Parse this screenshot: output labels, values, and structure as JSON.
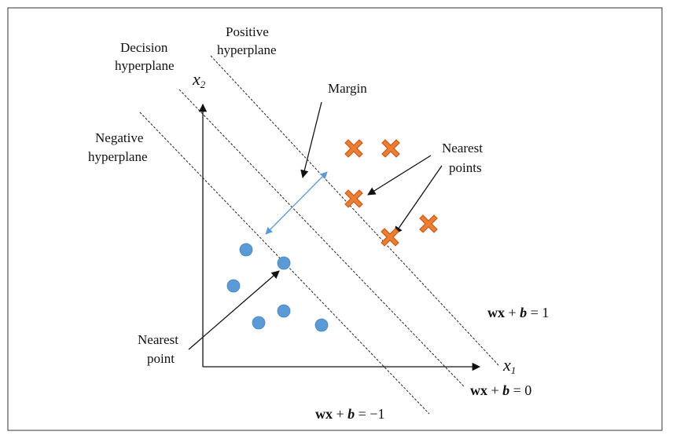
{
  "labels": {
    "positive_hyperplane": [
      "Positive",
      "hyperplane"
    ],
    "decision_hyperplane": [
      "Decision",
      "hyperplane"
    ],
    "negative_hyperplane": [
      "Negative",
      "hyperplane"
    ],
    "margin": "Margin",
    "nearest_points": [
      "Nearest",
      "points"
    ],
    "nearest_point": [
      "Nearest",
      "point"
    ]
  },
  "axes": {
    "x_var": "x",
    "x_sub": "1",
    "y_var": "x",
    "y_sub": "2"
  },
  "equations": {
    "positive": {
      "lhs": "wx",
      "op": " + ",
      "b": "b",
      "rhs": " = 1"
    },
    "decision": {
      "lhs": "wx",
      "op": " + ",
      "b": "b",
      "rhs": " = 0"
    },
    "negative": {
      "lhs": "wx",
      "op": " + ",
      "b": "b",
      "rhs": " = −1"
    }
  },
  "classes": [
    {
      "name": "negative",
      "marker": "circle",
      "color": "#5b9bd5"
    },
    {
      "name": "positive",
      "marker": "cross",
      "color": "#ed7d31"
    }
  ]
}
